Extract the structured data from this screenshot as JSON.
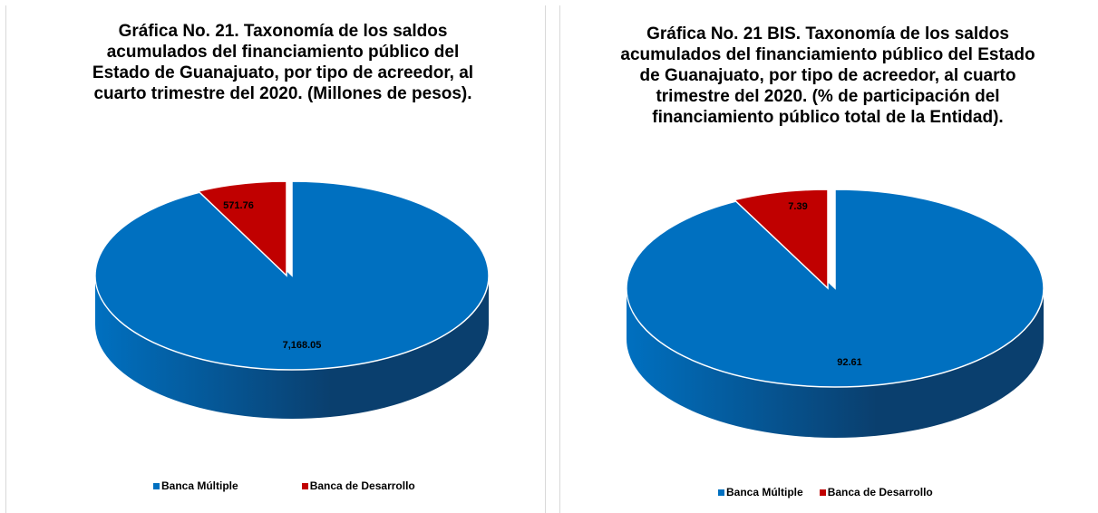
{
  "colors": {
    "banca_multiple": "#0070C0",
    "banca_multiple_dark": "#0a3f6e",
    "banca_desarrollo": "#C00000",
    "banca_desarrollo_dark": "#5c0000"
  },
  "chart_data": [
    {
      "type": "pie",
      "title": "Gráfica No. 21. Taxonomía de los saldos acumulados del financiamiento público del Estado de Guanajuato, por tipo de acreedor, al cuarto trimestre del 2020. (Millones de pesos).",
      "categories": [
        "Banca Múltiple",
        "Banca de Desarrollo"
      ],
      "values": [
        7168.05,
        571.76
      ],
      "data_labels": [
        "7,168.05",
        "571.76"
      ],
      "legend_position": "bottom"
    },
    {
      "type": "pie",
      "title": "Gráfica No. 21 BIS. Taxonomía de los saldos acumulados del financiamiento público del Estado de Guanajuato, por tipo de acreedor, al cuarto trimestre del 2020. (% de participación del financiamiento público total de la Entidad).",
      "categories": [
        "Banca Múltiple",
        "Banca de Desarrollo"
      ],
      "values": [
        92.61,
        7.39
      ],
      "data_labels": [
        "92.61",
        "7.39"
      ],
      "legend_position": "bottom"
    }
  ]
}
